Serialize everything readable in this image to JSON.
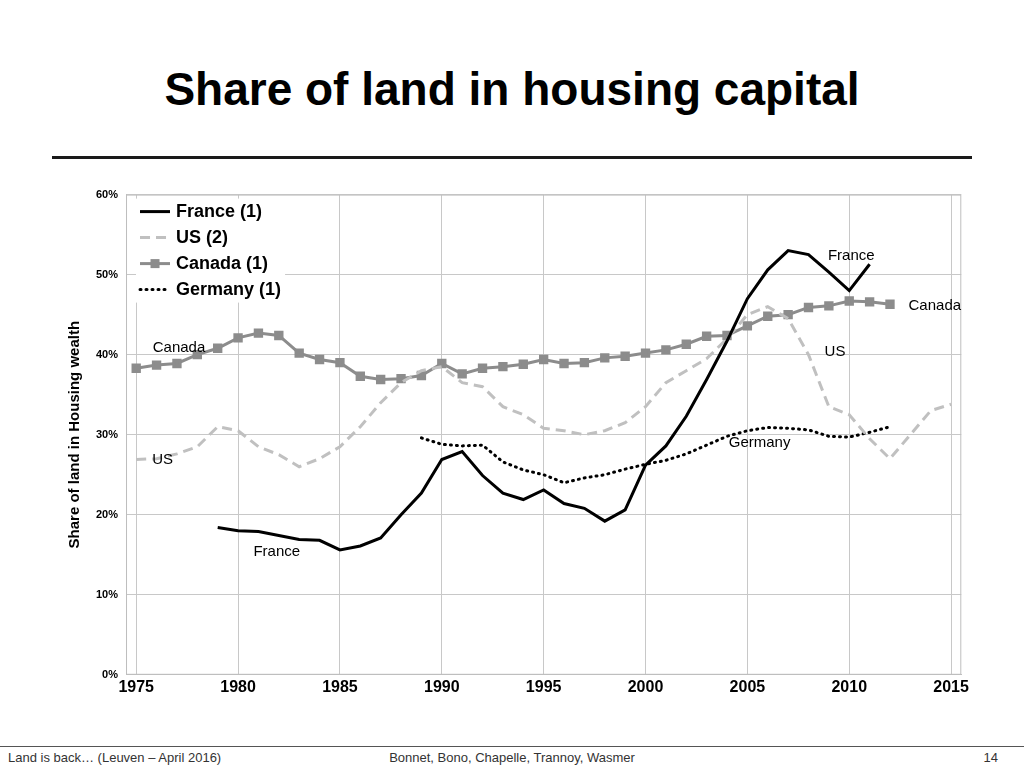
{
  "chart_data": {
    "type": "line",
    "title": "Share of land in housing capital",
    "y_label": "Share of land in Housing wealth",
    "x": [
      1975,
      1976,
      1977,
      1978,
      1979,
      1980,
      1981,
      1982,
      1983,
      1984,
      1985,
      1986,
      1987,
      1988,
      1989,
      1990,
      1991,
      1992,
      1993,
      1994,
      1995,
      1996,
      1997,
      1998,
      1999,
      2000,
      2001,
      2002,
      2003,
      2004,
      2005,
      2006,
      2007,
      2008,
      2009,
      2010,
      2011,
      2012,
      2013,
      2014,
      2015
    ],
    "series": [
      {
        "name": "France (1)",
        "color": "#000000",
        "line_style": "solid",
        "values": [
          null,
          null,
          null,
          null,
          18.4,
          18.0,
          17.9,
          17.4,
          16.9,
          16.8,
          15.6,
          16.1,
          17.1,
          20.0,
          22.7,
          26.9,
          27.9,
          24.9,
          22.7,
          21.9,
          23.1,
          21.4,
          20.8,
          19.2,
          20.6,
          26.2,
          28.6,
          32.3,
          36.9,
          41.7,
          47.0,
          50.6,
          53.0,
          52.5,
          50.3,
          48.0,
          51.3,
          null,
          null,
          null,
          null
        ]
      },
      {
        "name": "US (2)",
        "color": "#c0c0c0",
        "line_style": "dashed",
        "values": [
          26.9,
          27.0,
          27.6,
          28.5,
          31.0,
          30.5,
          28.5,
          27.5,
          26.0,
          27.0,
          28.5,
          31.0,
          34.0,
          36.5,
          38.0,
          38.5,
          36.5,
          36.0,
          33.5,
          32.5,
          30.8,
          30.5,
          30.0,
          30.5,
          31.5,
          33.5,
          36.5,
          38.0,
          39.5,
          42.0,
          45.0,
          46.0,
          44.5,
          40.0,
          33.5,
          32.5,
          29.5,
          27.0,
          30.0,
          33.0,
          33.8
        ]
      },
      {
        "name": "Canada (1)",
        "color": "#8c8c8c",
        "line_style": "solid",
        "marker": "square",
        "values": [
          38.3,
          38.7,
          38.9,
          40.0,
          40.8,
          42.1,
          42.7,
          42.4,
          40.2,
          39.4,
          39.0,
          37.3,
          36.9,
          37.0,
          37.4,
          38.9,
          37.6,
          38.3,
          38.5,
          38.8,
          39.4,
          38.9,
          39.0,
          39.6,
          39.8,
          40.2,
          40.6,
          41.3,
          42.3,
          42.4,
          43.6,
          44.8,
          45.0,
          45.9,
          46.1,
          46.7,
          46.6,
          46.3,
          null,
          null,
          null
        ]
      },
      {
        "name": "Germany (1)",
        "color": "#000000",
        "line_style": "dotted",
        "values": [
          null,
          null,
          null,
          null,
          null,
          null,
          null,
          null,
          null,
          null,
          null,
          null,
          null,
          null,
          29.6,
          28.8,
          28.6,
          28.7,
          26.6,
          25.6,
          25.0,
          24.0,
          24.6,
          25.0,
          25.7,
          26.3,
          26.8,
          27.6,
          28.7,
          29.8,
          30.5,
          30.9,
          30.8,
          30.6,
          29.8,
          29.7,
          30.3,
          31.0,
          null,
          null,
          null
        ]
      }
    ],
    "xlim": [
      1974.5,
      2015.5
    ],
    "xticks": [
      1975,
      1980,
      1985,
      1990,
      1995,
      2000,
      2005,
      2010,
      2015
    ],
    "ylim": [
      0,
      60
    ],
    "yticks": [
      {
        "value": 0,
        "label": "0%"
      },
      {
        "value": 10,
        "label": "10%"
      },
      {
        "value": 20,
        "label": "20%"
      },
      {
        "value": 30,
        "label": "30%"
      },
      {
        "value": 40,
        "label": "40%"
      },
      {
        "value": 50,
        "label": "50%"
      },
      {
        "value": 60,
        "label": "60%"
      }
    ],
    "grid": true,
    "legend": "upper left",
    "annotations": [
      {
        "text": "France",
        "x": 2010.1,
        "y": 52.3
      },
      {
        "text": "Canada",
        "x": 2014.2,
        "y": 46.1
      },
      {
        "text": "Canada",
        "x": 1977.1,
        "y": 40.9
      },
      {
        "text": "US",
        "x": 1976.3,
        "y": 26.9
      },
      {
        "text": "US",
        "x": 2009.3,
        "y": 40.3
      },
      {
        "text": "Germany",
        "x": 2005.6,
        "y": 29.0
      },
      {
        "text": "France",
        "x": 1981.9,
        "y": 15.3
      }
    ]
  },
  "footer": {
    "left": "Land is back… (Leuven – April 2016)",
    "center": "Bonnet, Bono, Chapelle, Trannoy, Wasmer",
    "right": "14"
  }
}
